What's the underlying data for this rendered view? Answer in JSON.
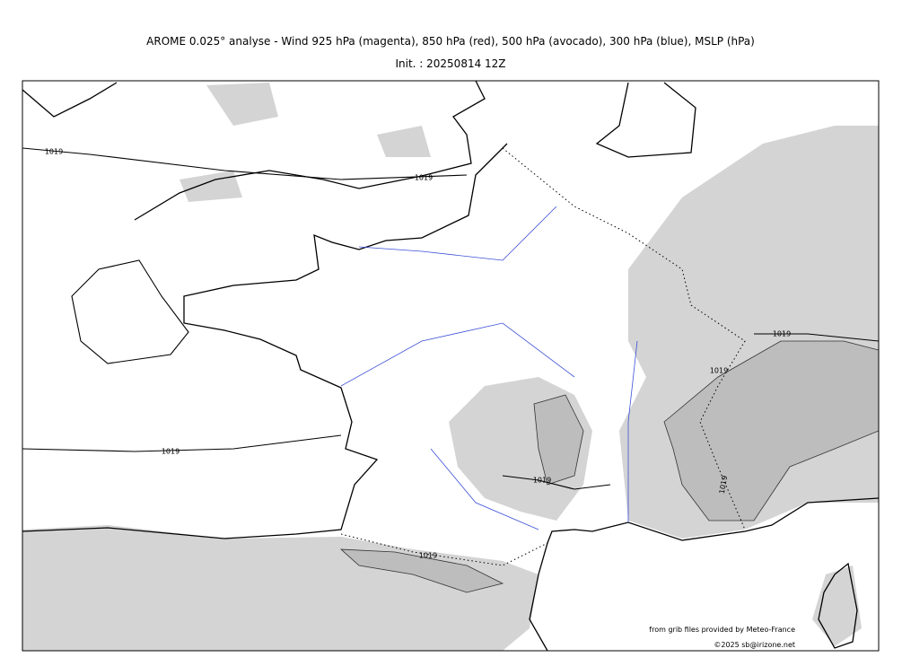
{
  "title": "AROME 0.025° analyse - Wind 925 hPa (magenta), 850 hPa (red), 500 hPa (avocado), 300 hPa (blue), MSLP (hPa)",
  "init": "Init. : 20250814 12Z",
  "isobar_labels": [
    "1019",
    "1019",
    "1019",
    "1019",
    "1019",
    "1019",
    "1019",
    "1019"
  ],
  "credits": [
    "from grib files provided by Meteo-France",
    "©2025 sb@irizone.net"
  ]
}
